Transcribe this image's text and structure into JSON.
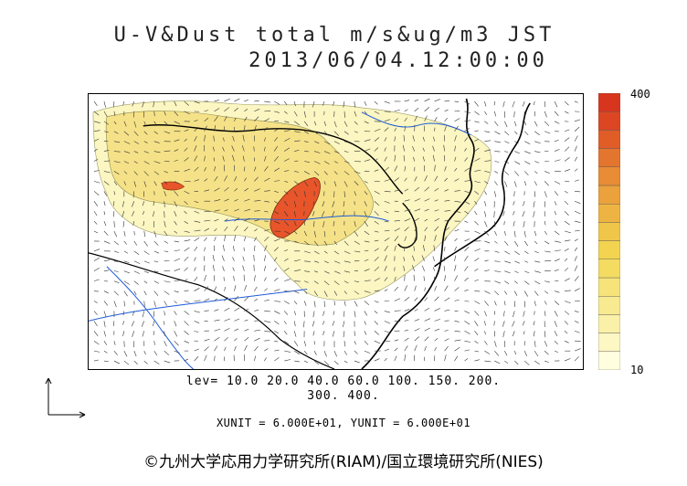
{
  "header": {
    "title": "U-V&Dust total m/s&ug/m3 JST",
    "datetime": "2013/06/04.12:00:00"
  },
  "colorbar": {
    "max_label": "400",
    "min_label": "10",
    "colors": [
      "#ffffe0",
      "#fdf7c3",
      "#faf0a8",
      "#f8ea90",
      "#f6e37a",
      "#f4dc63",
      "#f2d451",
      "#f0c64a",
      "#eeb443",
      "#eba13c",
      "#e88c35",
      "#e4752e",
      "#e05d28",
      "#dc4623",
      "#d8351e"
    ]
  },
  "map": {
    "dust_fill_light": "#fbf6c2",
    "dust_fill_mid": "#f5e288",
    "dust_fill_high": "#e8552a",
    "coast_color": "#000000",
    "river_color": "#1e5ad8"
  },
  "legend": {
    "levels_line1": "lev= 10.0 20.0 40.0 60.0 100. 150. 200.",
    "levels_line2": "300. 400.",
    "units": "XUNIT = 6.000E+01, YUNIT = 6.000E+01"
  },
  "credit": "©九州大学応用力学研究所(RIAM)/国立環境研究所(NIES)"
}
